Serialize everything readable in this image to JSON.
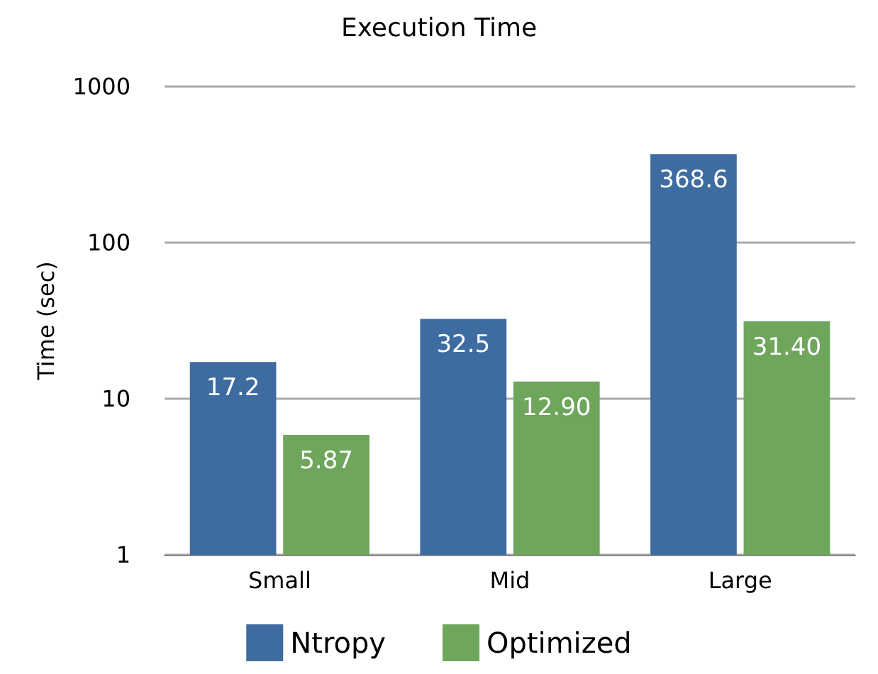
{
  "chart_data": {
    "type": "bar",
    "title": "Execution Time",
    "ylabel": "Time (sec)",
    "categories": [
      "Small",
      "Mid",
      "Large"
    ],
    "series": [
      {
        "name": "Ntropy",
        "color": "#3e6ca1",
        "values": [
          17.2,
          32.5,
          368.6
        ],
        "value_labels": [
          "17.2",
          "32.5",
          "368.6"
        ]
      },
      {
        "name": "Optimized",
        "color": "#6ea65c",
        "values": [
          5.87,
          12.9,
          31.4
        ],
        "value_labels": [
          "5.87",
          "12.90",
          "31.40"
        ]
      }
    ],
    "log": "y",
    "ylim": [
      1,
      1000
    ],
    "yticks": [
      1,
      10,
      100,
      1000
    ],
    "grid": "y",
    "legend": "bottom"
  }
}
